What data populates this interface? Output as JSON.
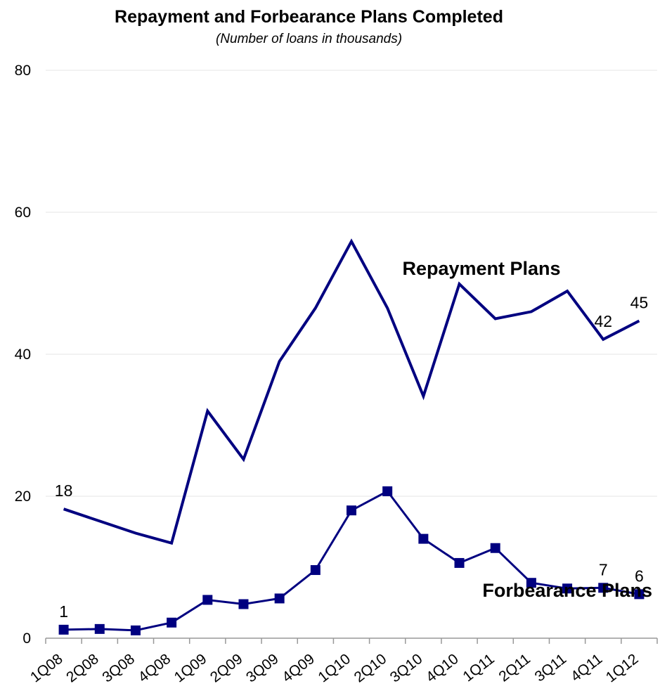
{
  "chart_data": {
    "type": "line",
    "title": "Repayment and Forbearance Plans Completed",
    "subtitle": "(Number of loans in thousands)",
    "xlabel": "",
    "ylabel": "",
    "ylim": [
      0,
      80
    ],
    "yticks": [
      "0",
      "20",
      "40",
      "60",
      "80"
    ],
    "grid": true,
    "categories": [
      "1Q08",
      "2Q08",
      "3Q08",
      "4Q08",
      "1Q09",
      "2Q09",
      "3Q09",
      "4Q09",
      "1Q10",
      "2Q10",
      "3Q10",
      "4Q10",
      "1Q11",
      "2Q11",
      "3Q11",
      "4Q11",
      "1Q12"
    ],
    "series": [
      {
        "name": "Repayment Plans",
        "color": "#000080",
        "marker": "none",
        "values": [
          18.2,
          16.5,
          14.8,
          13.4,
          32.0,
          25.2,
          39.0,
          46.5,
          55.9,
          46.5,
          34.1,
          49.9,
          45.0,
          46.0,
          48.9,
          42.1,
          44.7
        ],
        "labels": [
          {
            "index": 0,
            "text": "18"
          },
          {
            "index": 15,
            "text": "42"
          },
          {
            "index": 16,
            "text": "45"
          }
        ]
      },
      {
        "name": "Forbearance Plans",
        "color": "#000080",
        "marker": "square",
        "values": [
          1.2,
          1.3,
          1.1,
          2.2,
          5.4,
          4.8,
          5.6,
          9.6,
          18.0,
          20.7,
          14.0,
          10.6,
          12.7,
          7.8,
          7.0,
          7.1,
          6.2
        ],
        "labels": [
          {
            "index": 0,
            "text": "1"
          },
          {
            "index": 15,
            "text": "7"
          },
          {
            "index": 16,
            "text": "6"
          }
        ]
      }
    ]
  }
}
